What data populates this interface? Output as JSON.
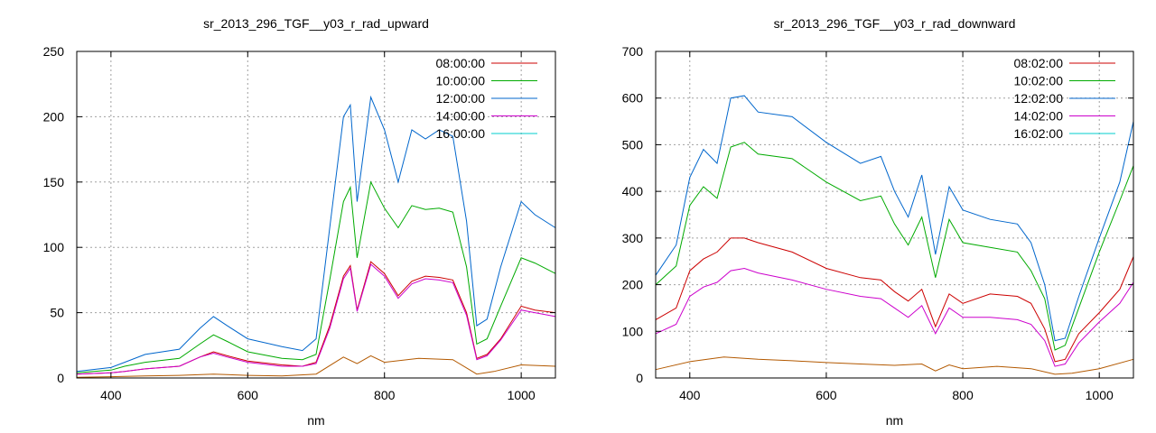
{
  "chart_data": [
    {
      "type": "line",
      "title": "sr_2013_296_TGF__y03_r_rad_upward",
      "xlabel": "nm",
      "ylabel": "",
      "xlim": [
        350,
        1050
      ],
      "ylim": [
        0,
        250
      ],
      "xticks": [
        400,
        600,
        800,
        1000
      ],
      "yticks": [
        0,
        50,
        100,
        150,
        200,
        250
      ],
      "grid": true,
      "legend": "top-right",
      "series": [
        {
          "name": "08:00:00",
          "color": "#cc0000",
          "x": [
            350,
            400,
            420,
            450,
            500,
            530,
            550,
            570,
            600,
            650,
            680,
            700,
            720,
            740,
            750,
            760,
            780,
            800,
            820,
            840,
            860,
            880,
            900,
            920,
            935,
            950,
            970,
            1000,
            1020,
            1050
          ],
          "y": [
            3,
            4,
            5,
            7,
            9,
            16,
            20,
            17,
            13,
            10,
            9,
            12,
            40,
            78,
            86,
            52,
            89,
            80,
            63,
            74,
            78,
            77,
            75,
            50,
            15,
            18,
            30,
            55,
            52,
            50
          ]
        },
        {
          "name": "10:00:00",
          "color": "#00aa00",
          "x": [
            350,
            400,
            420,
            450,
            500,
            530,
            550,
            570,
            600,
            650,
            680,
            700,
            720,
            740,
            750,
            760,
            780,
            800,
            820,
            840,
            860,
            880,
            900,
            920,
            935,
            950,
            970,
            1000,
            1020,
            1050
          ],
          "y": [
            4,
            6,
            9,
            12,
            15,
            26,
            33,
            28,
            20,
            15,
            14,
            18,
            75,
            135,
            146,
            92,
            150,
            130,
            115,
            132,
            129,
            130,
            127,
            85,
            26,
            30,
            55,
            92,
            88,
            80
          ]
        },
        {
          "name": "12:00:00",
          "color": "#0066cc",
          "x": [
            350,
            400,
            420,
            450,
            500,
            530,
            550,
            570,
            600,
            650,
            680,
            700,
            720,
            740,
            750,
            760,
            780,
            800,
            820,
            840,
            860,
            880,
            900,
            920,
            935,
            950,
            970,
            1000,
            1020,
            1050
          ],
          "y": [
            5,
            8,
            12,
            18,
            22,
            38,
            47,
            40,
            30,
            24,
            21,
            30,
            115,
            200,
            209,
            135,
            215,
            190,
            150,
            190,
            183,
            190,
            185,
            120,
            40,
            45,
            85,
            135,
            125,
            115
          ]
        },
        {
          "name": "14:00:00",
          "color": "#cc00cc",
          "x": [
            350,
            400,
            420,
            450,
            500,
            530,
            550,
            570,
            600,
            650,
            680,
            700,
            720,
            740,
            750,
            760,
            780,
            800,
            820,
            840,
            860,
            880,
            900,
            920,
            935,
            950,
            970,
            1000,
            1020,
            1050
          ],
          "y": [
            3,
            4,
            5,
            7,
            9,
            16,
            19,
            16,
            12,
            9,
            9,
            11,
            38,
            76,
            84,
            51,
            87,
            78,
            61,
            72,
            76,
            75,
            73,
            48,
            14,
            17,
            29,
            52,
            50,
            47
          ]
        },
        {
          "name": "16:00:00",
          "color": "#00cccc",
          "x": [],
          "y": []
        },
        {
          "name": "",
          "color": "#b35900",
          "x": [
            350,
            400,
            450,
            500,
            550,
            600,
            650,
            700,
            740,
            760,
            780,
            800,
            850,
            900,
            935,
            960,
            1000,
            1050
          ],
          "y": [
            0.5,
            1,
            1.5,
            2,
            3,
            2,
            1.5,
            3,
            16,
            11,
            17,
            12,
            15,
            14,
            3,
            5,
            10,
            9
          ]
        }
      ]
    },
    {
      "type": "line",
      "title": "sr_2013_296_TGF__y03_r_rad_downward",
      "xlabel": "nm",
      "ylabel": "",
      "xlim": [
        350,
        1050
      ],
      "ylim": [
        0,
        700
      ],
      "xticks": [
        400,
        600,
        800,
        1000
      ],
      "yticks": [
        0,
        100,
        200,
        300,
        400,
        500,
        600,
        700
      ],
      "grid": true,
      "legend": "top-right",
      "series": [
        {
          "name": "08:02:00",
          "color": "#cc0000",
          "x": [
            350,
            380,
            400,
            420,
            440,
            460,
            480,
            500,
            550,
            600,
            650,
            680,
            700,
            720,
            740,
            760,
            780,
            800,
            840,
            880,
            900,
            920,
            935,
            950,
            970,
            1000,
            1030,
            1050
          ],
          "y": [
            125,
            150,
            230,
            255,
            270,
            300,
            300,
            290,
            270,
            235,
            215,
            210,
            185,
            165,
            190,
            110,
            180,
            160,
            180,
            175,
            160,
            105,
            35,
            40,
            95,
            140,
            190,
            260
          ]
        },
        {
          "name": "10:02:00",
          "color": "#00aa00",
          "x": [
            350,
            380,
            400,
            420,
            440,
            460,
            480,
            500,
            550,
            600,
            650,
            680,
            700,
            720,
            740,
            760,
            780,
            800,
            840,
            880,
            900,
            920,
            935,
            950,
            970,
            1000,
            1030,
            1050
          ],
          "y": [
            200,
            240,
            370,
            410,
            385,
            495,
            505,
            480,
            470,
            420,
            380,
            390,
            330,
            285,
            345,
            215,
            340,
            290,
            280,
            270,
            230,
            170,
            60,
            70,
            150,
            270,
            380,
            455
          ]
        },
        {
          "name": "12:02:00",
          "color": "#0066cc",
          "x": [
            350,
            380,
            400,
            420,
            440,
            460,
            480,
            500,
            550,
            600,
            650,
            680,
            700,
            720,
            740,
            760,
            780,
            800,
            840,
            880,
            900,
            920,
            935,
            950,
            970,
            1000,
            1030,
            1050
          ],
          "y": [
            220,
            285,
            430,
            490,
            460,
            600,
            605,
            570,
            560,
            505,
            460,
            475,
            400,
            345,
            435,
            265,
            410,
            360,
            340,
            330,
            290,
            200,
            80,
            85,
            175,
            300,
            420,
            550
          ]
        },
        {
          "name": "14:02:00",
          "color": "#cc00cc",
          "x": [
            350,
            380,
            400,
            420,
            440,
            460,
            480,
            500,
            550,
            600,
            650,
            680,
            700,
            720,
            740,
            760,
            780,
            800,
            840,
            880,
            900,
            920,
            935,
            950,
            970,
            1000,
            1030,
            1050
          ],
          "y": [
            95,
            115,
            175,
            195,
            205,
            230,
            235,
            225,
            210,
            190,
            175,
            170,
            150,
            130,
            155,
            95,
            150,
            130,
            130,
            125,
            115,
            80,
            25,
            30,
            75,
            120,
            160,
            205
          ]
        },
        {
          "name": "16:02:00",
          "color": "#00cccc",
          "x": [],
          "y": []
        },
        {
          "name": "",
          "color": "#b35900",
          "x": [
            350,
            400,
            450,
            500,
            550,
            600,
            650,
            700,
            740,
            760,
            780,
            800,
            850,
            900,
            935,
            960,
            1000,
            1050
          ],
          "y": [
            18,
            35,
            45,
            40,
            37,
            33,
            30,
            27,
            30,
            15,
            28,
            20,
            25,
            20,
            8,
            10,
            20,
            40
          ]
        }
      ]
    }
  ]
}
